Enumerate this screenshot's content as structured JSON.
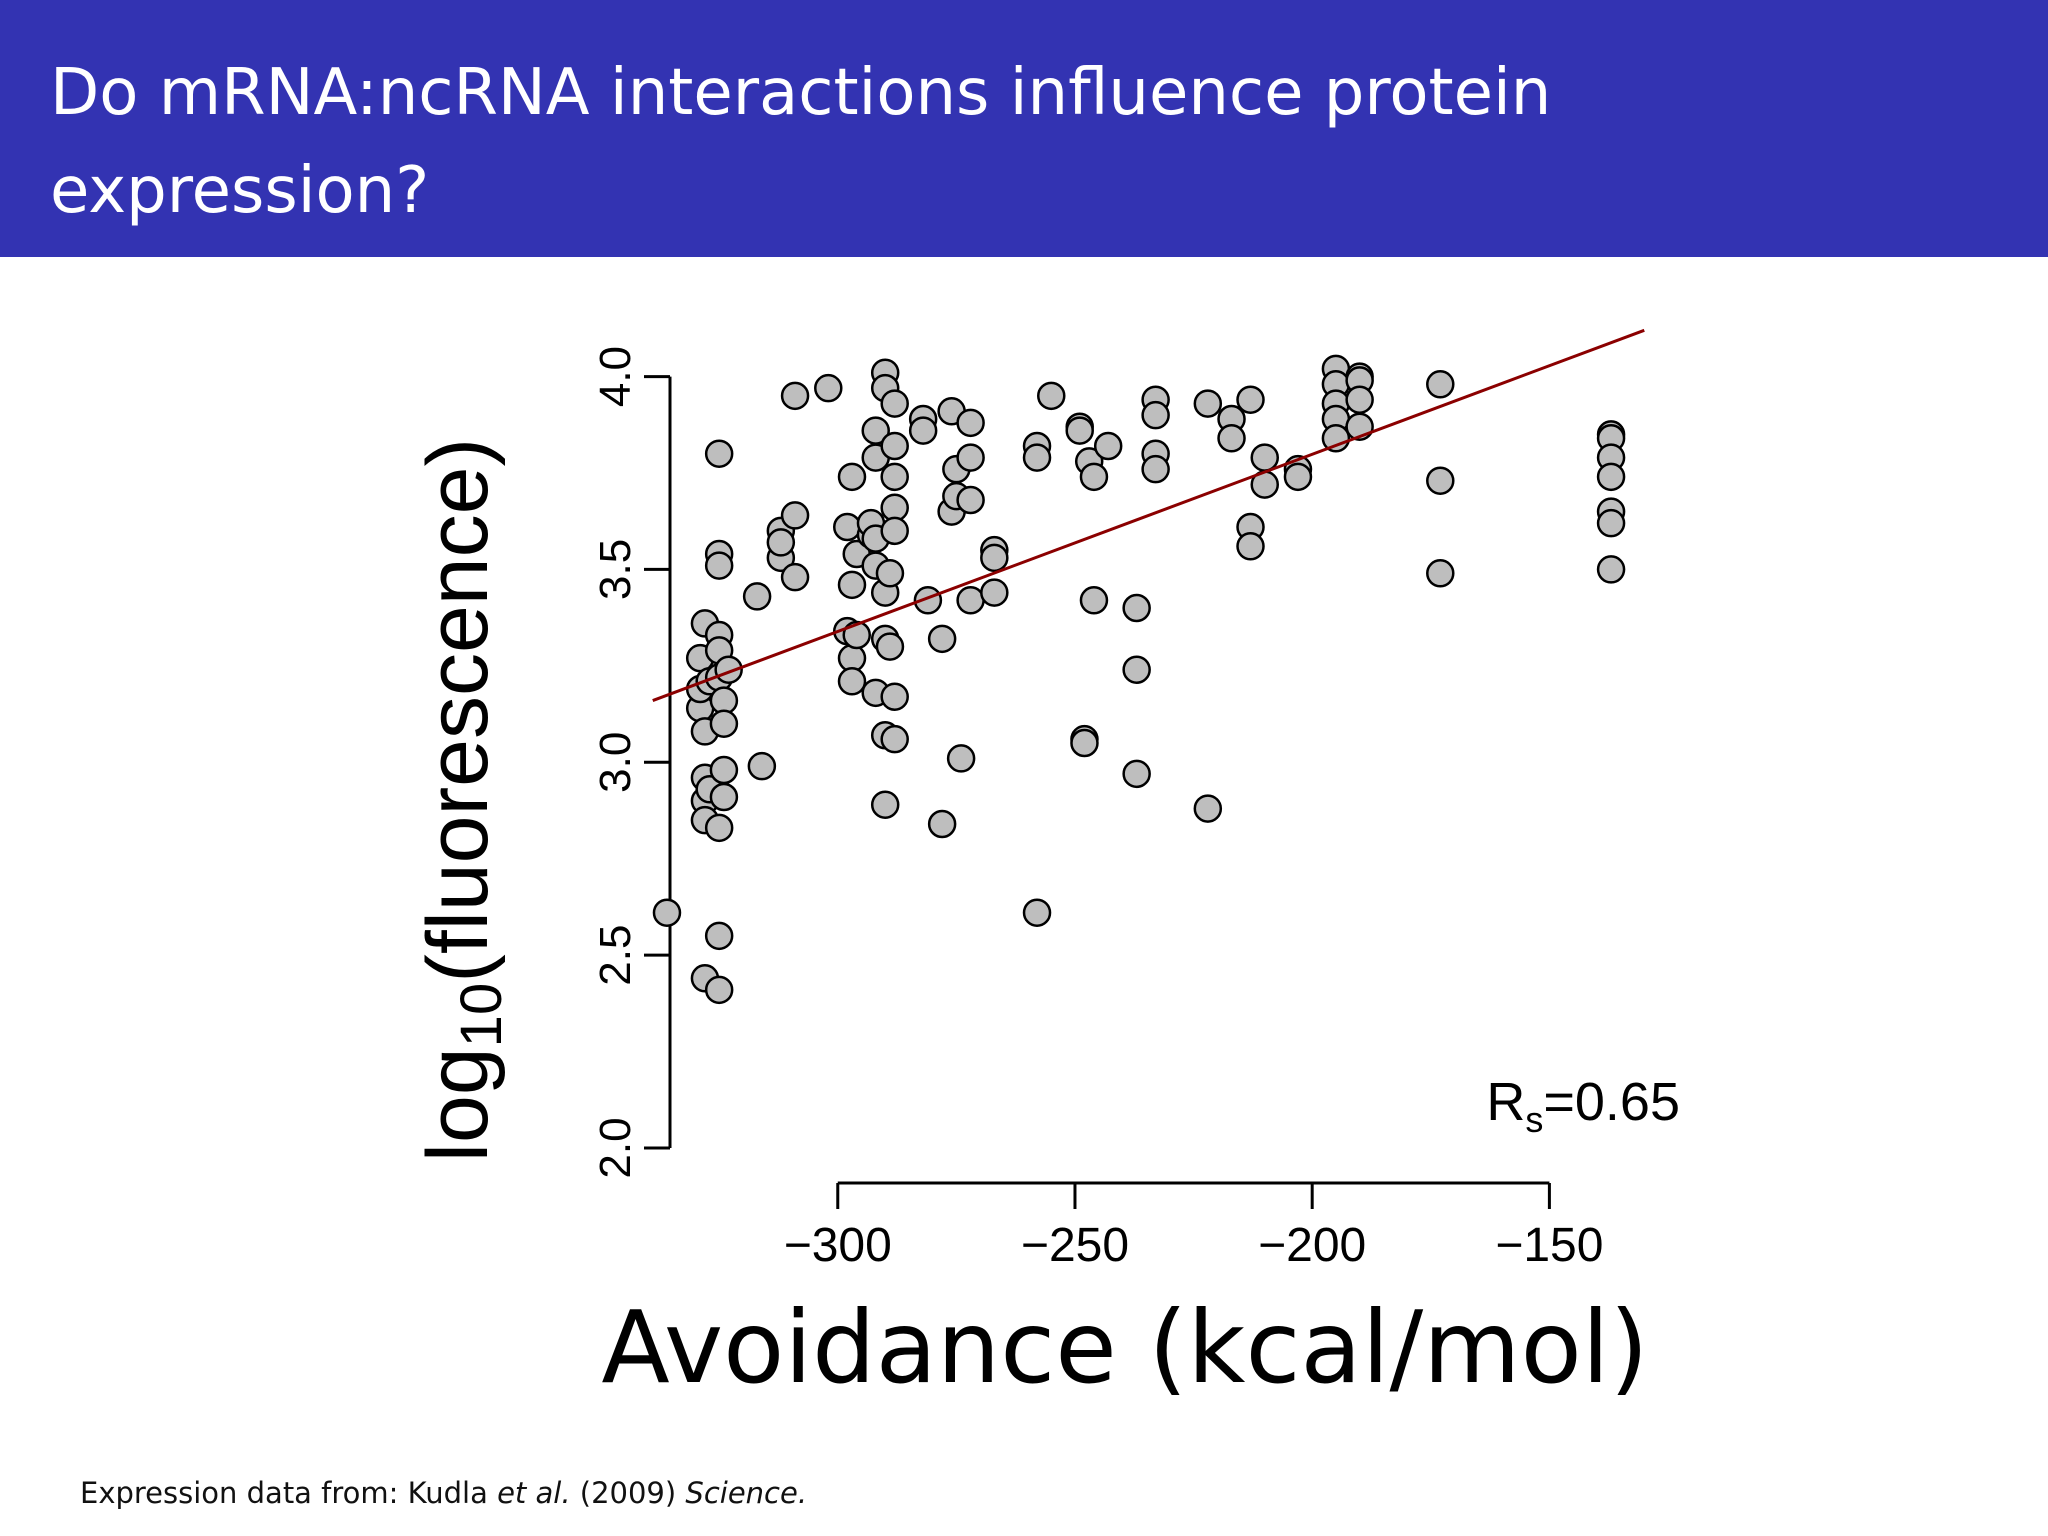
{
  "slide": {
    "title": "Do mRNA:ncRNA interactions influence protein expression?"
  },
  "footer": {
    "prefix": "Expression data from: Kudla ",
    "etal": "et al.",
    "middle": " (2009) ",
    "journal": "Science."
  },
  "chart_data": {
    "type": "scatter",
    "xlabel": "Avoidance (kcal/mol)",
    "ylabel": {
      "base": "log",
      "subscript": "10",
      "rest": "(fluorescence)"
    },
    "xlim": [
      -340,
      -125
    ],
    "ylim": [
      2.0,
      4.1
    ],
    "xticks": [
      -300,
      -250,
      -200,
      -150
    ],
    "xtick_labels": [
      "−300",
      "−250",
      "−200",
      "−150"
    ],
    "yticks": [
      2.0,
      2.5,
      3.0,
      3.5,
      4.0
    ],
    "ytick_labels": [
      "2.0",
      "2.5",
      "3.0",
      "3.5",
      "4.0"
    ],
    "annotation": {
      "main": "R",
      "subscript": "s",
      "rest": "=0.65"
    },
    "colors": {
      "point_fill": "#bebebe",
      "point_edge": "#000000",
      "fit_line": "#8b0000"
    },
    "fit_line": {
      "x": [
        -339,
        -130
      ],
      "y": [
        3.16,
        4.12
      ]
    },
    "points": [
      [
        -336,
        2.61
      ],
      [
        -329,
        3.27
      ],
      [
        -329,
        3.14
      ],
      [
        -329,
        3.19
      ],
      [
        -328,
        3.36
      ],
      [
        -328,
        3.08
      ],
      [
        -328,
        2.96
      ],
      [
        -328,
        2.9
      ],
      [
        -328,
        2.85
      ],
      [
        -328,
        2.44
      ],
      [
        -327,
        3.21
      ],
      [
        -327,
        2.93
      ],
      [
        -325,
        3.8
      ],
      [
        -325,
        3.54
      ],
      [
        -325,
        3.51
      ],
      [
        -325,
        3.33
      ],
      [
        -325,
        3.29
      ],
      [
        -325,
        3.22
      ],
      [
        -325,
        2.83
      ],
      [
        -325,
        2.55
      ],
      [
        -325,
        2.41
      ],
      [
        -324,
        3.16
      ],
      [
        -324,
        3.1
      ],
      [
        -324,
        2.98
      ],
      [
        -324,
        2.91
      ],
      [
        -323,
        3.24
      ],
      [
        -317,
        3.43
      ],
      [
        -316,
        2.99
      ],
      [
        -312,
        3.6
      ],
      [
        -312,
        3.53
      ],
      [
        -312,
        3.57
      ],
      [
        -309,
        3.95
      ],
      [
        -309,
        3.64
      ],
      [
        -309,
        3.48
      ],
      [
        -302,
        3.97
      ],
      [
        -298,
        3.61
      ],
      [
        -298,
        3.34
      ],
      [
        -297,
        3.74
      ],
      [
        -297,
        3.46
      ],
      [
        -297,
        3.27
      ],
      [
        -297,
        3.21
      ],
      [
        -296,
        3.54
      ],
      [
        -296,
        3.33
      ],
      [
        -293,
        3.59
      ],
      [
        -293,
        3.62
      ],
      [
        -292,
        3.86
      ],
      [
        -292,
        3.79
      ],
      [
        -292,
        3.58
      ],
      [
        -292,
        3.51
      ],
      [
        -292,
        3.18
      ],
      [
        -290,
        4.01
      ],
      [
        -290,
        3.97
      ],
      [
        -290,
        3.44
      ],
      [
        -290,
        3.32
      ],
      [
        -290,
        3.07
      ],
      [
        -290,
        2.89
      ],
      [
        -289,
        3.49
      ],
      [
        -289,
        3.3
      ],
      [
        -288,
        3.93
      ],
      [
        -288,
        3.82
      ],
      [
        -288,
        3.74
      ],
      [
        -288,
        3.66
      ],
      [
        -288,
        3.6
      ],
      [
        -288,
        3.17
      ],
      [
        -288,
        3.06
      ],
      [
        -282,
        3.89
      ],
      [
        -282,
        3.86
      ],
      [
        -281,
        3.42
      ],
      [
        -278,
        3.32
      ],
      [
        -278,
        2.84
      ],
      [
        -276,
        3.91
      ],
      [
        -276,
        3.65
      ],
      [
        -275,
        3.69
      ],
      [
        -275,
        3.76
      ],
      [
        -274,
        3.01
      ],
      [
        -272,
        3.88
      ],
      [
        -272,
        3.79
      ],
      [
        -272,
        3.68
      ],
      [
        -272,
        3.42
      ],
      [
        -267,
        3.55
      ],
      [
        -267,
        3.53
      ],
      [
        -267,
        3.44
      ],
      [
        -258,
        3.82
      ],
      [
        -258,
        3.79
      ],
      [
        -258,
        2.61
      ],
      [
        -255,
        3.95
      ],
      [
        -249,
        3.87
      ],
      [
        -249,
        3.86
      ],
      [
        -248,
        3.06
      ],
      [
        -248,
        3.05
      ],
      [
        -247,
        3.78
      ],
      [
        -246,
        3.74
      ],
      [
        -246,
        3.42
      ],
      [
        -243,
        3.82
      ],
      [
        -237,
        3.4
      ],
      [
        -237,
        3.24
      ],
      [
        -237,
        2.97
      ],
      [
        -233,
        3.94
      ],
      [
        -233,
        3.9
      ],
      [
        -233,
        3.8
      ],
      [
        -233,
        3.76
      ],
      [
        -222,
        3.93
      ],
      [
        -222,
        2.88
      ],
      [
        -217,
        3.89
      ],
      [
        -217,
        3.84
      ],
      [
        -213,
        3.94
      ],
      [
        -213,
        3.61
      ],
      [
        -213,
        3.56
      ],
      [
        -210,
        3.79
      ],
      [
        -210,
        3.72
      ],
      [
        -203,
        3.76
      ],
      [
        -203,
        3.74
      ],
      [
        -195,
        4.02
      ],
      [
        -195,
        3.98
      ],
      [
        -195,
        3.93
      ],
      [
        -195,
        3.89
      ],
      [
        -195,
        3.84
      ],
      [
        -190,
        4.0
      ],
      [
        -190,
        3.99
      ],
      [
        -190,
        3.94
      ],
      [
        -190,
        3.87
      ],
      [
        -173,
        3.98
      ],
      [
        -173,
        3.73
      ],
      [
        -173,
        3.49
      ],
      [
        -137,
        3.85
      ],
      [
        -137,
        3.84
      ],
      [
        -137,
        3.79
      ],
      [
        -137,
        3.74
      ],
      [
        -137,
        3.65
      ],
      [
        -137,
        3.62
      ],
      [
        -137,
        3.5
      ]
    ]
  }
}
